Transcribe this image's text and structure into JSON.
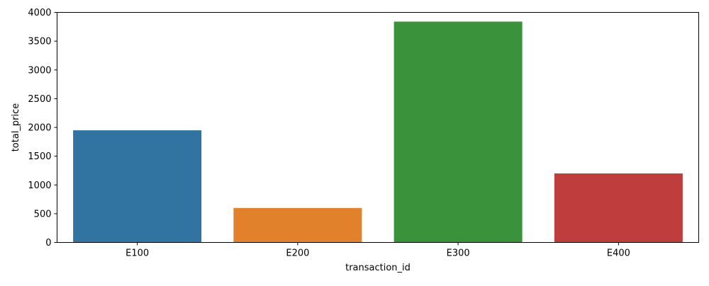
{
  "chart_data": {
    "type": "bar",
    "title": "",
    "xlabel": "transaction_id",
    "ylabel": "total_price",
    "categories": [
      "E100",
      "E200",
      "E300",
      "E400"
    ],
    "values": [
      1950,
      600,
      3840,
      1200
    ],
    "colors": [
      "#3274a1",
      "#e1812c",
      "#3a923a",
      "#c03d3e"
    ],
    "ylim": [
      0,
      4000
    ],
    "yticks": [
      0,
      500,
      1000,
      1500,
      2000,
      2500,
      3000,
      3500,
      4000
    ],
    "grid": false,
    "legend": "none"
  }
}
